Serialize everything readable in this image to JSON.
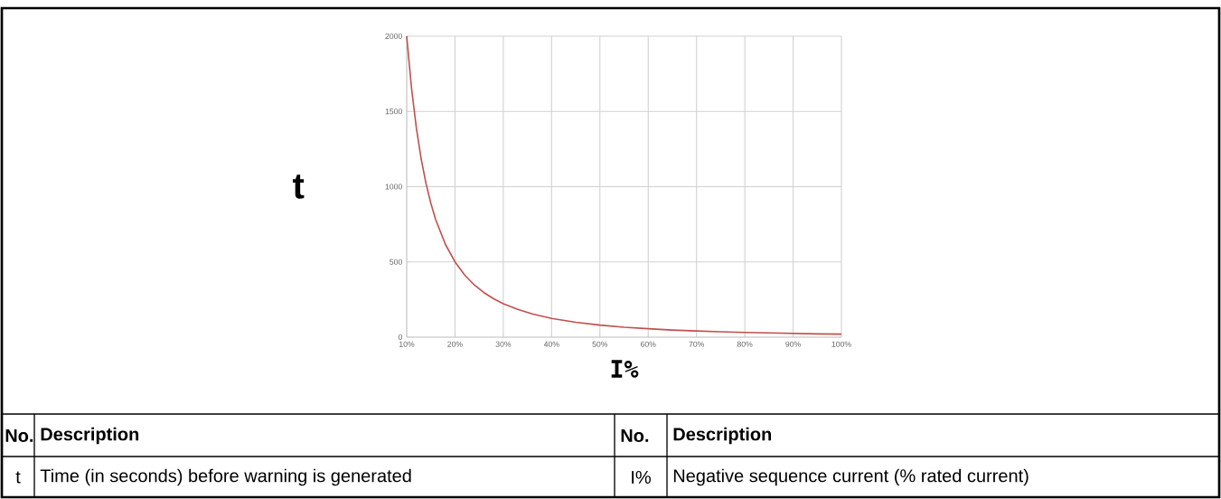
{
  "chart_data": {
    "type": "line",
    "xlabel": "I%",
    "ylabel": "t",
    "x": [
      10,
      11,
      12,
      13,
      14,
      15,
      16,
      18,
      20,
      22,
      24,
      26,
      28,
      30,
      33,
      36,
      40,
      45,
      50,
      55,
      60,
      65,
      70,
      75,
      80,
      85,
      90,
      95,
      100
    ],
    "series": [
      {
        "color": "#c0504d",
        "values": [
          2000,
          1653,
          1389,
          1183,
          1020,
          889,
          781,
          617,
          500,
          413,
          347,
          296,
          255,
          222,
          184,
          154,
          125,
          99,
          80,
          66,
          56,
          47,
          41,
          36,
          31,
          28,
          25,
          22,
          20
        ]
      }
    ],
    "xlim": [
      10,
      100
    ],
    "ylim": [
      0,
      2000
    ],
    "xticks": [
      {
        "value": 10,
        "label": "10%"
      },
      {
        "value": 20,
        "label": "20%"
      },
      {
        "value": 30,
        "label": "30%"
      },
      {
        "value": 40,
        "label": "40%"
      },
      {
        "value": 50,
        "label": "50%"
      },
      {
        "value": 60,
        "label": "60%"
      },
      {
        "value": 70,
        "label": "70%"
      },
      {
        "value": 80,
        "label": "80%"
      },
      {
        "value": 90,
        "label": "90%"
      },
      {
        "value": 100,
        "label": "100%"
      }
    ],
    "yticks": [
      0,
      500,
      1000,
      1500,
      2000
    ],
    "grid": true,
    "marker": "none",
    "line_style": "solid",
    "annotations": [
      "No.",
      "Description",
      "No.",
      "Description",
      "t",
      "Time (in seconds) before warning is generated",
      "I%",
      "Negative sequence current (% rated current)"
    ]
  }
}
